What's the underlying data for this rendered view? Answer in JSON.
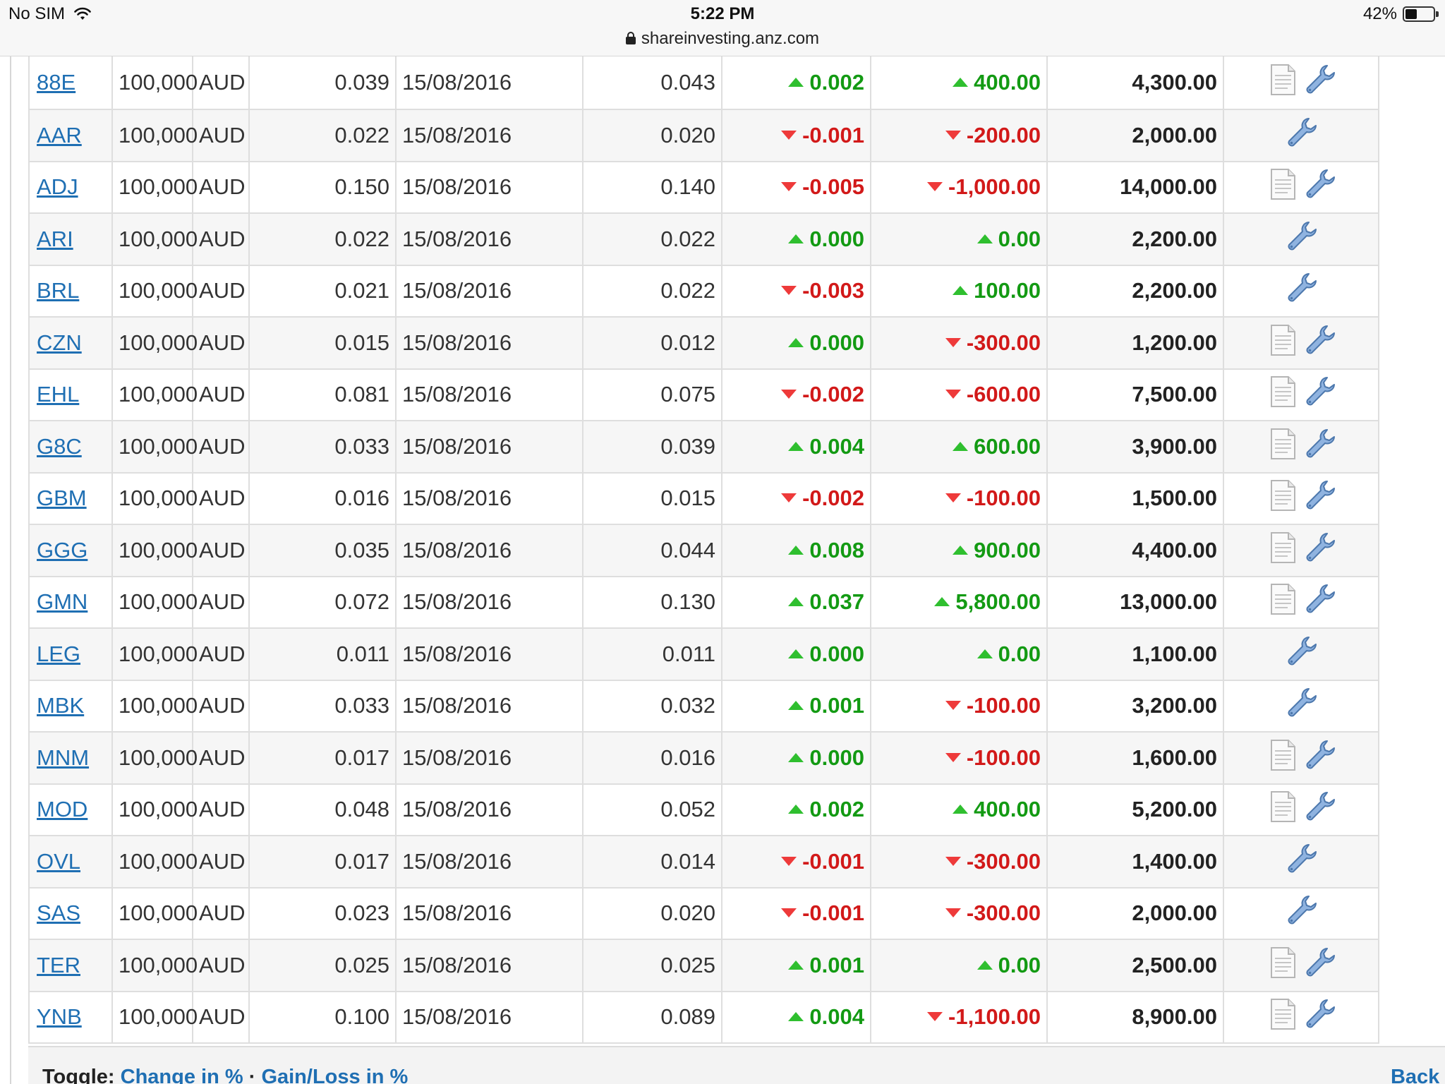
{
  "status_bar": {
    "carrier": "No SIM",
    "time": "5:22 PM",
    "url": "shareinvesting.anz.com",
    "battery": "42%",
    "battery_level": 0.42
  },
  "rows": [
    {
      "code": "88E",
      "qty": "100,000",
      "cur": "AUD",
      "cost": "0.039",
      "date": "15/08/2016",
      "last": "0.043",
      "chg": "0.002",
      "chg_dir": "up",
      "gl": "400.00",
      "gl_dir": "up",
      "value": "4,300.00",
      "has_doc": true
    },
    {
      "code": "AAR",
      "qty": "100,000",
      "cur": "AUD",
      "cost": "0.022",
      "date": "15/08/2016",
      "last": "0.020",
      "chg": "-0.001",
      "chg_dir": "down",
      "gl": "-200.00",
      "gl_dir": "down",
      "value": "2,000.00",
      "has_doc": false
    },
    {
      "code": "ADJ",
      "qty": "100,000",
      "cur": "AUD",
      "cost": "0.150",
      "date": "15/08/2016",
      "last": "0.140",
      "chg": "-0.005",
      "chg_dir": "down",
      "gl": "-1,000.00",
      "gl_dir": "down",
      "value": "14,000.00",
      "has_doc": true
    },
    {
      "code": "ARI",
      "qty": "100,000",
      "cur": "AUD",
      "cost": "0.022",
      "date": "15/08/2016",
      "last": "0.022",
      "chg": "0.000",
      "chg_dir": "up",
      "gl": "0.00",
      "gl_dir": "up",
      "value": "2,200.00",
      "has_doc": false
    },
    {
      "code": "BRL",
      "qty": "100,000",
      "cur": "AUD",
      "cost": "0.021",
      "date": "15/08/2016",
      "last": "0.022",
      "chg": "-0.003",
      "chg_dir": "down",
      "gl": "100.00",
      "gl_dir": "up",
      "value": "2,200.00",
      "has_doc": false
    },
    {
      "code": "CZN",
      "qty": "100,000",
      "cur": "AUD",
      "cost": "0.015",
      "date": "15/08/2016",
      "last": "0.012",
      "chg": "0.000",
      "chg_dir": "up",
      "gl": "-300.00",
      "gl_dir": "down",
      "value": "1,200.00",
      "has_doc": true
    },
    {
      "code": "EHL",
      "qty": "100,000",
      "cur": "AUD",
      "cost": "0.081",
      "date": "15/08/2016",
      "last": "0.075",
      "chg": "-0.002",
      "chg_dir": "down",
      "gl": "-600.00",
      "gl_dir": "down",
      "value": "7,500.00",
      "has_doc": true
    },
    {
      "code": "G8C",
      "qty": "100,000",
      "cur": "AUD",
      "cost": "0.033",
      "date": "15/08/2016",
      "last": "0.039",
      "chg": "0.004",
      "chg_dir": "up",
      "gl": "600.00",
      "gl_dir": "up",
      "value": "3,900.00",
      "has_doc": true
    },
    {
      "code": "GBM",
      "qty": "100,000",
      "cur": "AUD",
      "cost": "0.016",
      "date": "15/08/2016",
      "last": "0.015",
      "chg": "-0.002",
      "chg_dir": "down",
      "gl": "-100.00",
      "gl_dir": "down",
      "value": "1,500.00",
      "has_doc": true
    },
    {
      "code": "GGG",
      "qty": "100,000",
      "cur": "AUD",
      "cost": "0.035",
      "date": "15/08/2016",
      "last": "0.044",
      "chg": "0.008",
      "chg_dir": "up",
      "gl": "900.00",
      "gl_dir": "up",
      "value": "4,400.00",
      "has_doc": true
    },
    {
      "code": "GMN",
      "qty": "100,000",
      "cur": "AUD",
      "cost": "0.072",
      "date": "15/08/2016",
      "last": "0.130",
      "chg": "0.037",
      "chg_dir": "up",
      "gl": "5,800.00",
      "gl_dir": "up",
      "value": "13,000.00",
      "has_doc": true
    },
    {
      "code": "LEG",
      "qty": "100,000",
      "cur": "AUD",
      "cost": "0.011",
      "date": "15/08/2016",
      "last": "0.011",
      "chg": "0.000",
      "chg_dir": "up",
      "gl": "0.00",
      "gl_dir": "up",
      "value": "1,100.00",
      "has_doc": false
    },
    {
      "code": "MBK",
      "qty": "100,000",
      "cur": "AUD",
      "cost": "0.033",
      "date": "15/08/2016",
      "last": "0.032",
      "chg": "0.001",
      "chg_dir": "up",
      "gl": "-100.00",
      "gl_dir": "down",
      "value": "3,200.00",
      "has_doc": false
    },
    {
      "code": "MNM",
      "qty": "100,000",
      "cur": "AUD",
      "cost": "0.017",
      "date": "15/08/2016",
      "last": "0.016",
      "chg": "0.000",
      "chg_dir": "up",
      "gl": "-100.00",
      "gl_dir": "down",
      "value": "1,600.00",
      "has_doc": true
    },
    {
      "code": "MOD",
      "qty": "100,000",
      "cur": "AUD",
      "cost": "0.048",
      "date": "15/08/2016",
      "last": "0.052",
      "chg": "0.002",
      "chg_dir": "up",
      "gl": "400.00",
      "gl_dir": "up",
      "value": "5,200.00",
      "has_doc": true
    },
    {
      "code": "OVL",
      "qty": "100,000",
      "cur": "AUD",
      "cost": "0.017",
      "date": "15/08/2016",
      "last": "0.014",
      "chg": "-0.001",
      "chg_dir": "down",
      "gl": "-300.00",
      "gl_dir": "down",
      "value": "1,400.00",
      "has_doc": false
    },
    {
      "code": "SAS",
      "qty": "100,000",
      "cur": "AUD",
      "cost": "0.023",
      "date": "15/08/2016",
      "last": "0.020",
      "chg": "-0.001",
      "chg_dir": "down",
      "gl": "-300.00",
      "gl_dir": "down",
      "value": "2,000.00",
      "has_doc": false
    },
    {
      "code": "TER",
      "qty": "100,000",
      "cur": "AUD",
      "cost": "0.025",
      "date": "15/08/2016",
      "last": "0.025",
      "chg": "0.001",
      "chg_dir": "up",
      "gl": "0.00",
      "gl_dir": "up",
      "value": "2,500.00",
      "has_doc": true
    },
    {
      "code": "YNB",
      "qty": "100,000",
      "cur": "AUD",
      "cost": "0.100",
      "date": "15/08/2016",
      "last": "0.089",
      "chg": "0.004",
      "chg_dir": "up",
      "gl": "-1,100.00",
      "gl_dir": "down",
      "value": "8,900.00",
      "has_doc": true
    }
  ],
  "toggle": {
    "label": "Toggle:",
    "link_change": "Change in %",
    "separator": "·",
    "link_gain": "Gain/Loss in %"
  },
  "back_link": "Back t",
  "icons": {
    "row_document": "document-icon",
    "row_tools": "wrench-icon",
    "up_indicator": "triangle-up-icon",
    "down_indicator": "triangle-down-icon"
  },
  "colors": {
    "link": "#1f6fb3",
    "positive": "#139a13",
    "negative": "#d21919",
    "row_alt": "#f6f6f6"
  }
}
